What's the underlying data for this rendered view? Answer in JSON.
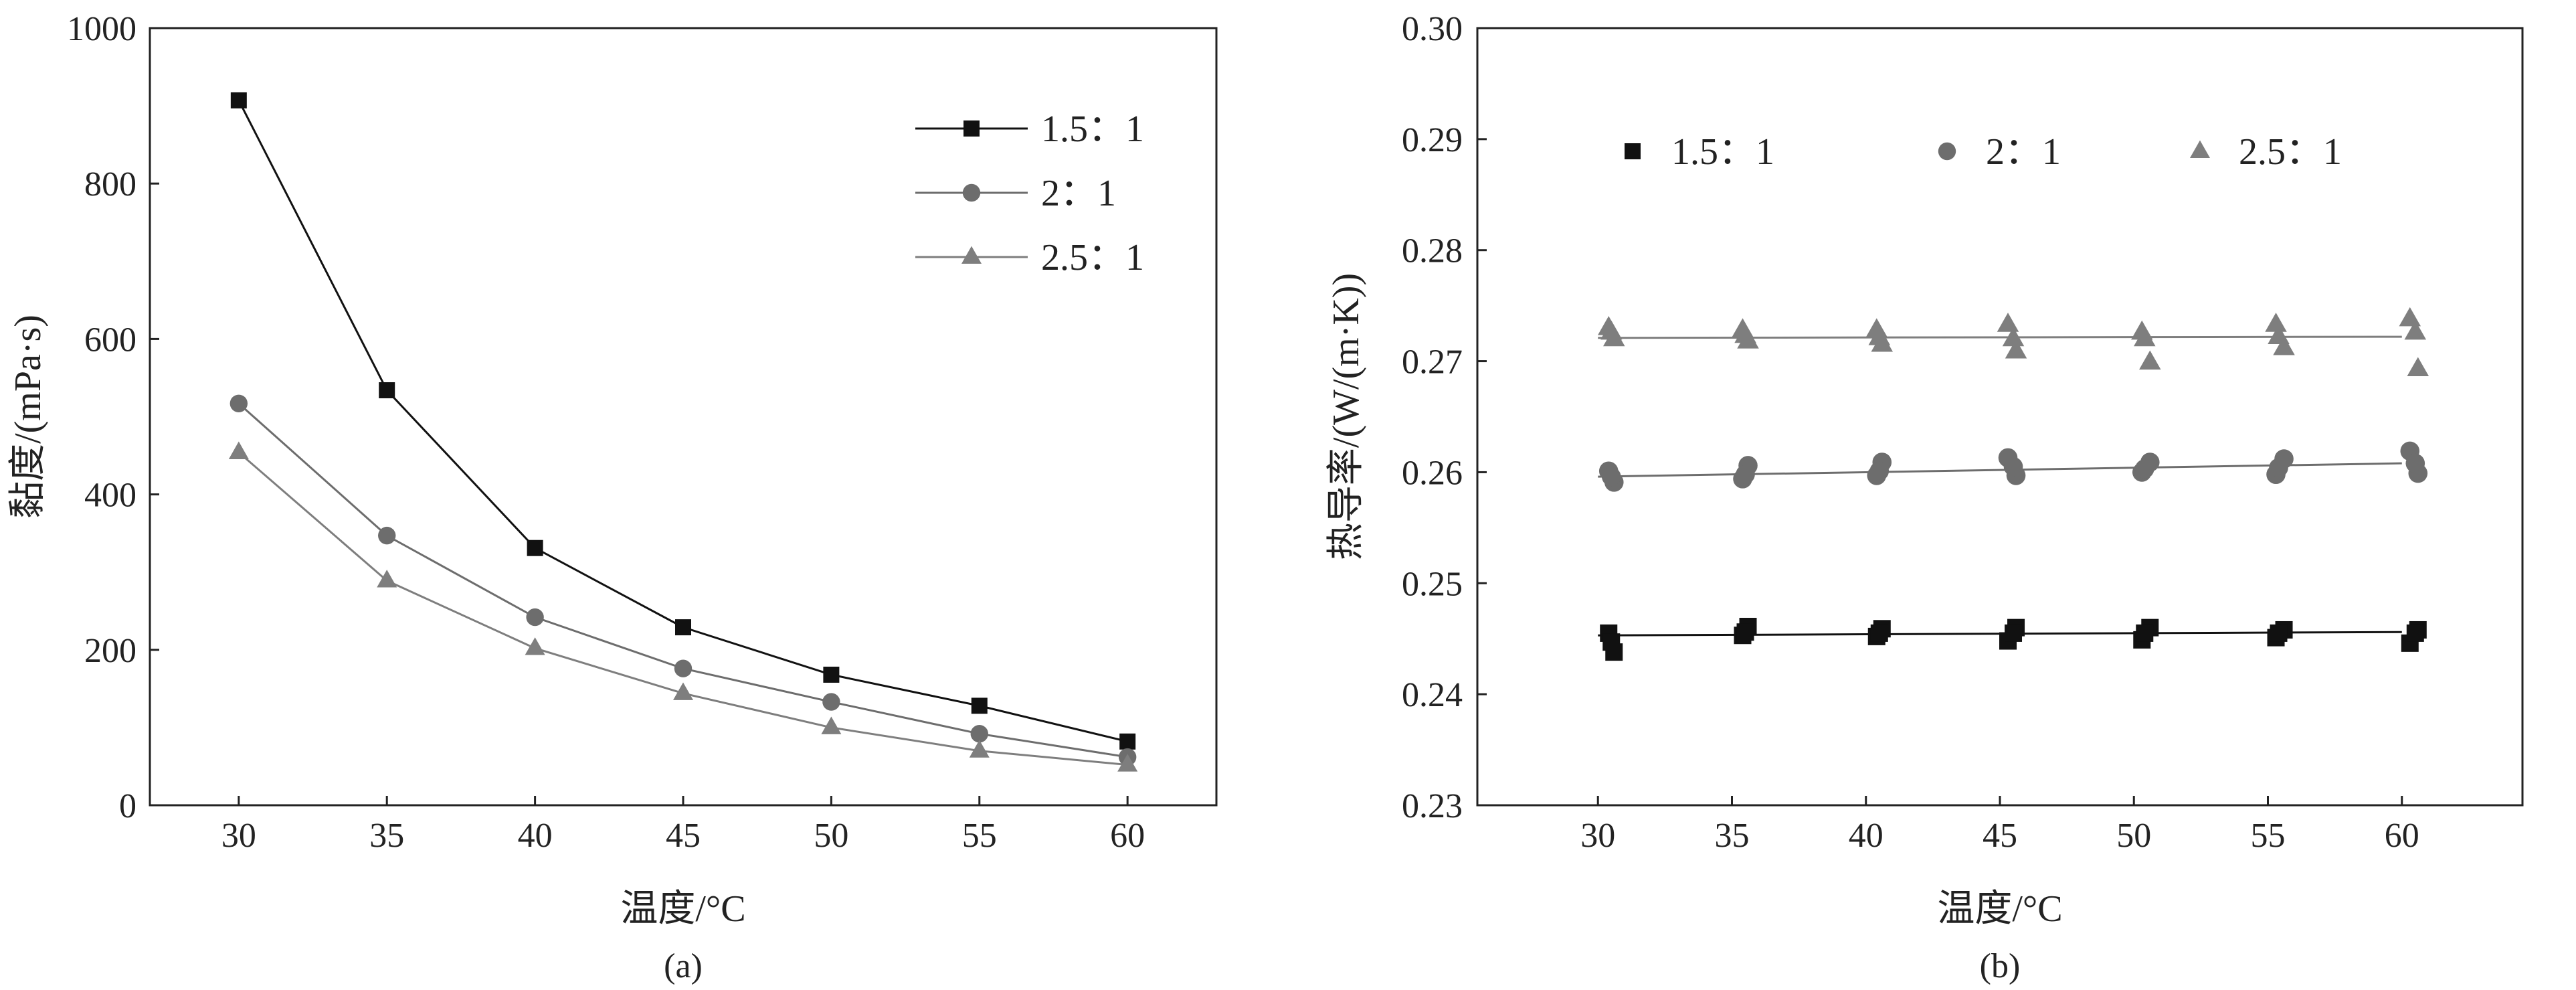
{
  "chart_data": [
    {
      "type": "line",
      "panel_label": "(a)",
      "xlabel": "温度/°C",
      "ylabel": "黏度/(mPa·s)",
      "xlim": [
        27,
        63
      ],
      "ylim": [
        0,
        1000
      ],
      "x_ticks": [
        30,
        35,
        40,
        45,
        50,
        55,
        60
      ],
      "y_ticks": [
        0,
        200,
        400,
        600,
        800,
        1000
      ],
      "legend_position": "top-right",
      "markers_connected": true,
      "series": [
        {
          "name": "1.5：1",
          "marker": "square",
          "color": "#111111",
          "x": [
            30,
            35,
            40,
            45,
            50,
            55,
            60
          ],
          "y": [
            907,
            534,
            331,
            229,
            168,
            128,
            82
          ]
        },
        {
          "name": "2：1",
          "marker": "circle",
          "color": "#6d6d6d",
          "x": [
            30,
            35,
            40,
            45,
            50,
            55,
            60
          ],
          "y": [
            517,
            347,
            242,
            176,
            133,
            92,
            62
          ]
        },
        {
          "name": "2.5：1",
          "marker": "triangle",
          "color": "#7e7e7e",
          "x": [
            30,
            35,
            40,
            45,
            50,
            55,
            60
          ],
          "y": [
            454,
            289,
            202,
            144,
            100,
            70,
            52
          ]
        }
      ]
    },
    {
      "type": "scatter",
      "panel_label": "(b)",
      "xlabel": "温度/°C",
      "ylabel": "热导率/(W/(m·K))",
      "xlim": [
        25.5,
        64.5
      ],
      "ylim": [
        0.23,
        0.3
      ],
      "x_ticks": [
        30,
        35,
        40,
        45,
        50,
        55,
        60
      ],
      "y_ticks": [
        "0.23",
        "0.24",
        "0.25",
        "0.26",
        "0.27",
        "0.28",
        "0.29",
        "0.30"
      ],
      "legend_position": "top",
      "fit_lines": true,
      "series": [
        {
          "name": "1.5：1",
          "marker": "square",
          "color": "#111111",
          "x": [
            30.4,
            30.6,
            30.5,
            35.4,
            35.6,
            35.5,
            40.4,
            40.6,
            40.5,
            45.3,
            45.6,
            45.5,
            50.3,
            50.6,
            50.4,
            55.3,
            55.6,
            55.4,
            60.3,
            60.6,
            60.5
          ],
          "y": [
            0.2455,
            0.2438,
            0.2447,
            0.2453,
            0.2461,
            0.2456,
            0.2452,
            0.2459,
            0.2455,
            0.2448,
            0.246,
            0.2455,
            0.2449,
            0.246,
            0.2455,
            0.2451,
            0.2458,
            0.2455,
            0.2446,
            0.2458,
            0.2455
          ],
          "fit": {
            "x": [
              30,
              60
            ],
            "y": [
              0.2453,
              0.2456
            ]
          }
        },
        {
          "name": "2：1",
          "marker": "circle",
          "color": "#6d6d6d",
          "x": [
            30.4,
            30.6,
            30.5,
            35.4,
            35.6,
            35.5,
            40.4,
            40.6,
            40.5,
            45.3,
            45.6,
            45.5,
            50.3,
            50.6,
            50.4,
            55.3,
            55.6,
            55.4,
            60.3,
            60.6,
            60.5
          ],
          "y": [
            0.2601,
            0.2591,
            0.2596,
            0.2594,
            0.2606,
            0.2598,
            0.2597,
            0.2609,
            0.2601,
            0.2613,
            0.2597,
            0.2605,
            0.26,
            0.2609,
            0.2603,
            0.2598,
            0.2612,
            0.2604,
            0.2619,
            0.2599,
            0.2608
          ],
          "fit": {
            "x": [
              30,
              60
            ],
            "y": [
              0.2596,
              0.2608
            ]
          }
        },
        {
          "name": "2.5：1",
          "marker": "triangle",
          "color": "#7e7e7e",
          "x": [
            30.4,
            30.6,
            30.5,
            35.4,
            35.6,
            35.5,
            40.4,
            40.6,
            40.5,
            45.3,
            45.6,
            45.5,
            50.3,
            50.6,
            50.4,
            55.3,
            55.6,
            55.4,
            60.3,
            60.6,
            60.5
          ],
          "y": [
            0.273,
            0.272,
            0.2726,
            0.2728,
            0.2718,
            0.2723,
            0.2728,
            0.2715,
            0.2721,
            0.2733,
            0.2709,
            0.272,
            0.2726,
            0.2699,
            0.272,
            0.2733,
            0.2712,
            0.2722,
            0.2738,
            0.2693,
            0.2726
          ],
          "fit": {
            "x": [
              30,
              60
            ],
            "y": [
              0.2721,
              0.2722
            ]
          }
        }
      ]
    }
  ]
}
